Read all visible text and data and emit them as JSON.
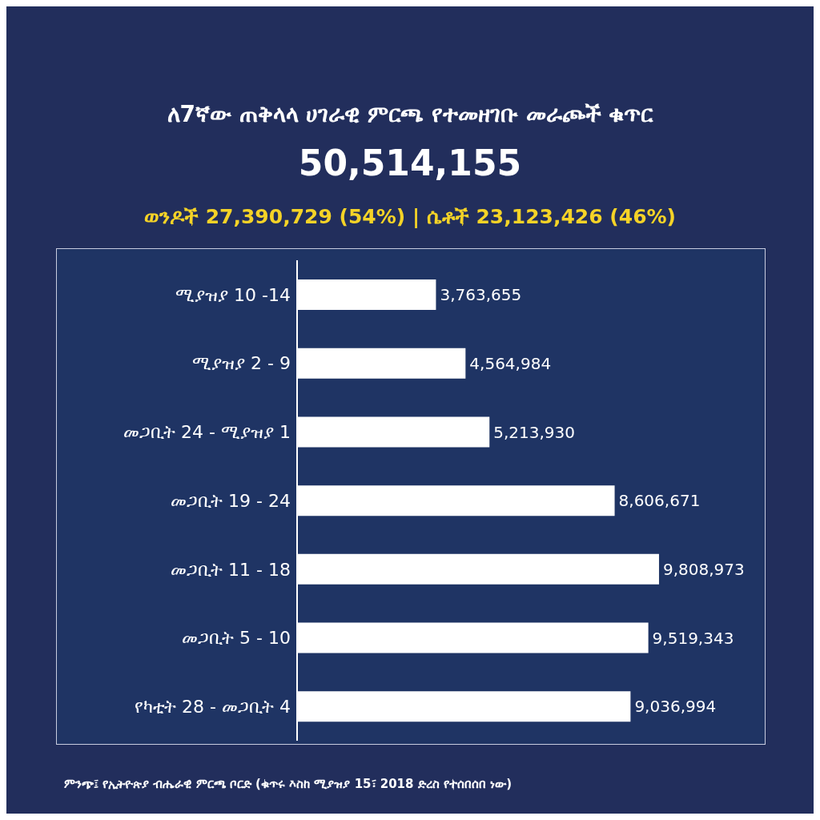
{
  "chart_data": {
    "type": "bar",
    "orientation": "horizontal",
    "title": "ለ7ኛው ጠቅላላ ሀገራዊ ምርጫ የተመዘገቡ መራጮች ቁጥር",
    "subtitle": "50,514,155",
    "annotations": [
      "ወንዶች 27,390,729 (54%) | ሴቶች 23,123,426 (46%)",
      "ምንጭ፤ የኢትዮጵያ ብሔራዊ ምርጫ ቦርድ (ቁጥሩ እስከ ሚያዝያ 15፣ 2018 ድረስ የተሰበሰበ ነው)"
    ],
    "categories": [
      "ሚያዝያ 10 -14",
      "ሚያዝያ 2 - 9",
      "መጋቢት 24 - ሚያዝያ 1",
      "መጋቢት 19 - 24",
      "መጋቢት 11 - 18",
      "መጋቢት 5 - 10",
      "የካቲት 28 - መጋቢት 4"
    ],
    "values": [
      3763655,
      4564984,
      5213930,
      8606671,
      9808973,
      9519343,
      9036994
    ],
    "value_labels": [
      "3,763,655",
      "4,564,984",
      "5,213,930",
      "8,606,671",
      "9,808,973",
      "9,519,343",
      "9,036,994"
    ],
    "color": "#ffffff",
    "grid": false,
    "legend": false
  }
}
